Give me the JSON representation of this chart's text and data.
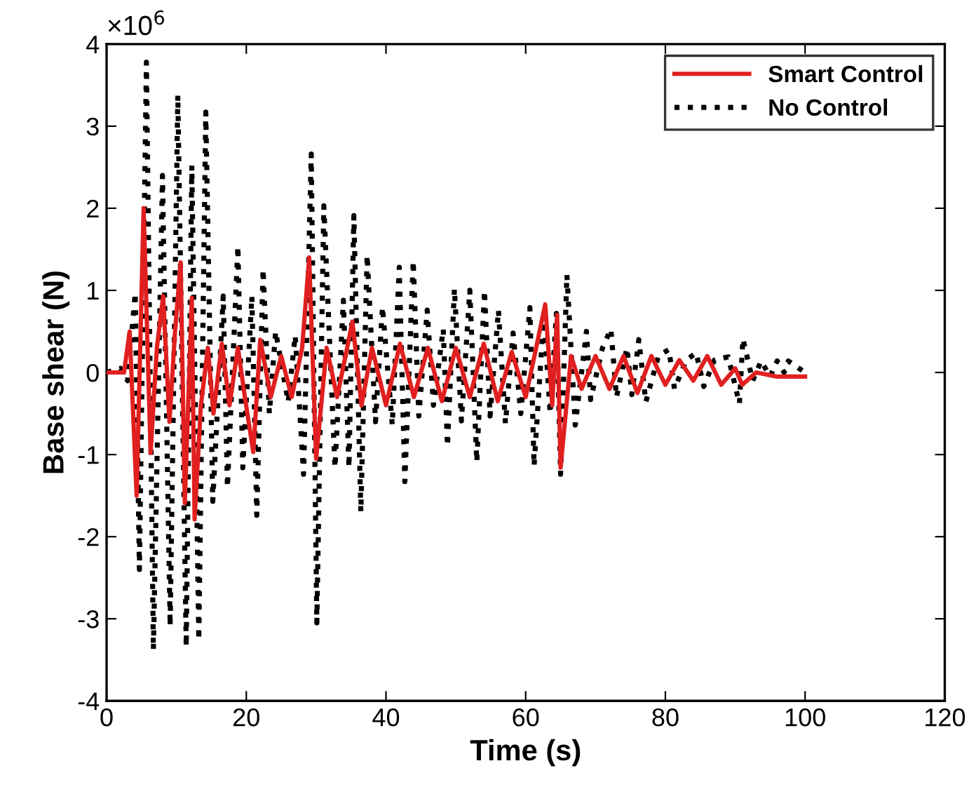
{
  "chart_data": {
    "type": "line",
    "xlabel": "Time (s)",
    "ylabel": "Base shear (N)",
    "annotations": [
      "×10$^{6}$"
    ],
    "xlim": [
      0,
      120
    ],
    "xticks": [
      0,
      20,
      40,
      60,
      80,
      100,
      120
    ],
    "ylim": [
      -4,
      4
    ],
    "yticks": [
      -4,
      -3,
      -2,
      -1,
      0,
      1,
      2,
      3,
      4
    ],
    "grid": false,
    "legend": "top right",
    "marker": "none",
    "series": [
      {
        "name": "Smart Control",
        "color": "#e02020",
        "line_style": "solid",
        "x": [
          0,
          2.5,
          3.3,
          4.3,
          5.3,
          6.3,
          7.2,
          8.1,
          9,
          9.8,
          10.6,
          11.2,
          12.2,
          12.6,
          13.5,
          14.5,
          15.3,
          16.5,
          17.6,
          18.8,
          19.8,
          21,
          22,
          23.5,
          25,
          26.5,
          28,
          29,
          30,
          31.5,
          33,
          34.2,
          35.2,
          36.5,
          38,
          40,
          42,
          44,
          46,
          48,
          50,
          52,
          54,
          56,
          58,
          60,
          61.5,
          62.8,
          63.8,
          64.5,
          65,
          66.5,
          68,
          70,
          72,
          74,
          76,
          78,
          80,
          82,
          84,
          86,
          88,
          90,
          91,
          93,
          96,
          100
        ],
        "values": [
          0,
          0,
          0.5,
          -1.5,
          2.0,
          -0.98,
          0.3,
          0.93,
          -0.6,
          0.5,
          1.34,
          -1.59,
          0.91,
          -1.79,
          -0.4,
          0.3,
          -0.5,
          0.35,
          -0.4,
          0.3,
          -0.3,
          -0.97,
          0.4,
          -0.3,
          0.2,
          -0.3,
          0.3,
          1.4,
          -1.05,
          0.3,
          -0.3,
          0.2,
          0.62,
          -0.4,
          0.3,
          -0.4,
          0.35,
          -0.3,
          0.3,
          -0.35,
          0.3,
          -0.3,
          0.35,
          -0.35,
          0.25,
          -0.3,
          0.3,
          0.83,
          -0.4,
          0.7,
          -1.16,
          0.2,
          -0.2,
          0.2,
          -0.2,
          0.2,
          -0.25,
          0.2,
          -0.15,
          0.15,
          -0.1,
          0.2,
          -0.15,
          0.05,
          -0.15,
          0.0,
          -0.05,
          -0.05
        ]
      },
      {
        "name": "No Control",
        "color": "#000000",
        "line_style": "dotted",
        "x": [
          0,
          2,
          3,
          4.1,
          4.7,
          5.7,
          6.7,
          8.0,
          9.1,
          10.2,
          11.4,
          12.2,
          13.2,
          14.2,
          15.2,
          16.7,
          17.3,
          18.8,
          19.5,
          20.8,
          21.5,
          22.4,
          23.3,
          24.2,
          26,
          27,
          28.2,
          29.3,
          30.1,
          31.1,
          32.7,
          33.9,
          34.7,
          35.4,
          36.4,
          37.3,
          38.5,
          39.5,
          40.9,
          41.9,
          42.7,
          43.9,
          44.7,
          45.9,
          46.8,
          48.2,
          48.8,
          49.8,
          50.8,
          52,
          53,
          54.1,
          54.9,
          56.1,
          57.1,
          58.2,
          59.3,
          60.6,
          61.2,
          62.6,
          63.5,
          64.4,
          65,
          65.9,
          67.1,
          68.7,
          69.3,
          71,
          72.2,
          73,
          74.5,
          75.2,
          76.2,
          77.2,
          79,
          80.5,
          81.3,
          83,
          84.4,
          85.5,
          87,
          89,
          90.6,
          91.1,
          92.5,
          93.7,
          95,
          96,
          97,
          97.6,
          100
        ],
        "values": [
          0,
          0.05,
          -0.1,
          0.97,
          -2.4,
          3.78,
          -3.38,
          2.4,
          -3.09,
          3.38,
          -3.34,
          2.52,
          -3.26,
          3.17,
          -1.57,
          0.93,
          -1.4,
          1.54,
          -1.16,
          0.93,
          -1.74,
          1.26,
          -0.5,
          0.5,
          -0.36,
          0.45,
          -1.24,
          2.66,
          -3.05,
          2.03,
          -1.16,
          0.88,
          -1.16,
          1.91,
          -1.7,
          1.43,
          -0.6,
          0.8,
          -0.64,
          1.28,
          -1.33,
          1.36,
          -0.53,
          0.76,
          -0.4,
          0.53,
          -0.9,
          1.02,
          -0.59,
          1.0,
          -1.09,
          1.0,
          -0.53,
          0.76,
          -0.62,
          0.48,
          -0.5,
          0.79,
          -1.14,
          0.71,
          -0.5,
          0.72,
          -1.24,
          1.19,
          -0.64,
          0.5,
          -0.33,
          0.3,
          0.53,
          -0.3,
          0.3,
          -0.27,
          0.4,
          -0.36,
          0.2,
          0.28,
          -0.2,
          0.15,
          0.24,
          -0.17,
          0.15,
          0.19,
          -0.38,
          0.41,
          -0.1,
          0.14,
          -0.05,
          0.14,
          0.0,
          0.14,
          0
        ]
      }
    ]
  }
}
